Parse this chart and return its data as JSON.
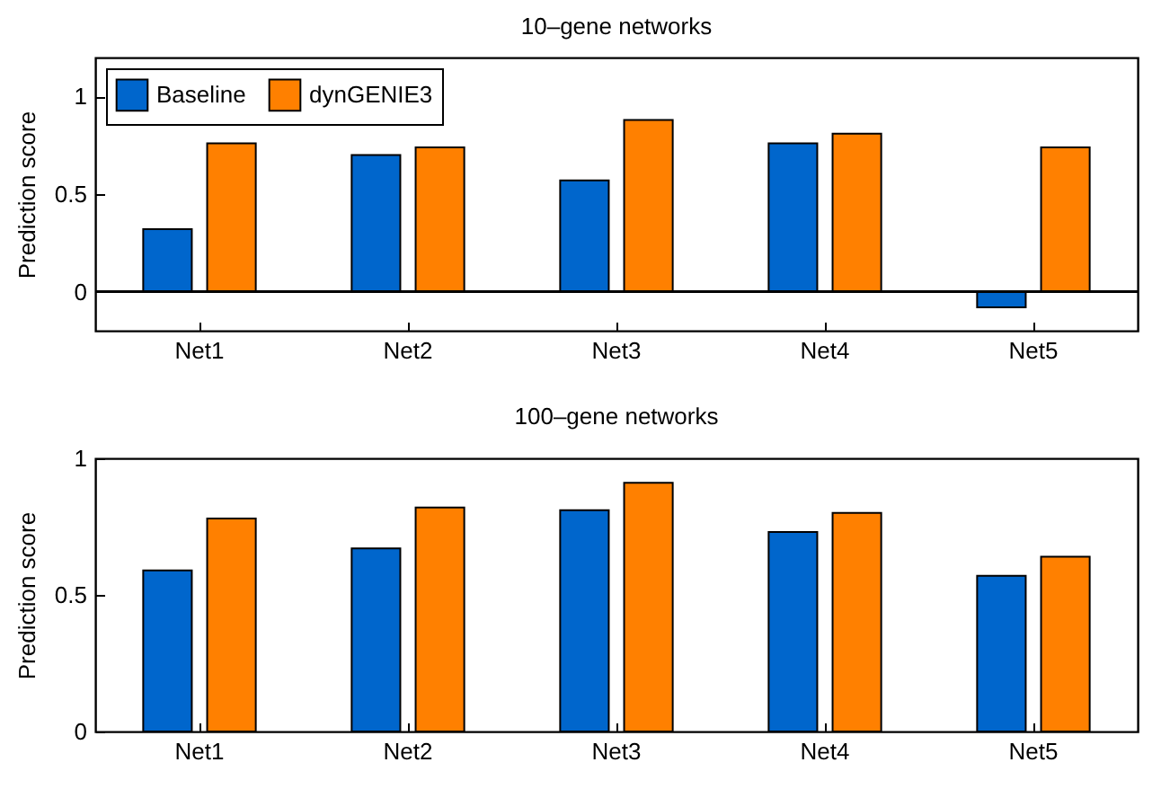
{
  "chart_data": [
    {
      "type": "bar",
      "title": "10–gene networks",
      "ylabel": "Prediction score",
      "categories": [
        "Net1",
        "Net2",
        "Net3",
        "Net4",
        "Net5"
      ],
      "series": [
        {
          "name": "Baseline",
          "color": "#0066cc",
          "values": [
            0.32,
            0.7,
            0.57,
            0.76,
            -0.08
          ]
        },
        {
          "name": "dynGENIE3",
          "color": "#ff8000",
          "values": [
            0.76,
            0.74,
            0.88,
            0.81,
            0.74
          ]
        }
      ],
      "ylim": [
        -0.2,
        1.2
      ],
      "yticks": [
        0,
        0.5,
        1
      ],
      "legend": "top left"
    },
    {
      "type": "bar",
      "title": "100–gene networks",
      "ylabel": "Prediction score",
      "categories": [
        "Net1",
        "Net2",
        "Net3",
        "Net4",
        "Net5"
      ],
      "series": [
        {
          "name": "Baseline",
          "color": "#0066cc",
          "values": [
            0.59,
            0.67,
            0.81,
            0.73,
            0.57
          ]
        },
        {
          "name": "dynGENIE3",
          "color": "#ff8000",
          "values": [
            0.78,
            0.82,
            0.91,
            0.8,
            0.64
          ]
        }
      ],
      "ylim": [
        0,
        1
      ],
      "yticks": [
        0,
        0.5,
        1
      ],
      "legend": false
    }
  ]
}
